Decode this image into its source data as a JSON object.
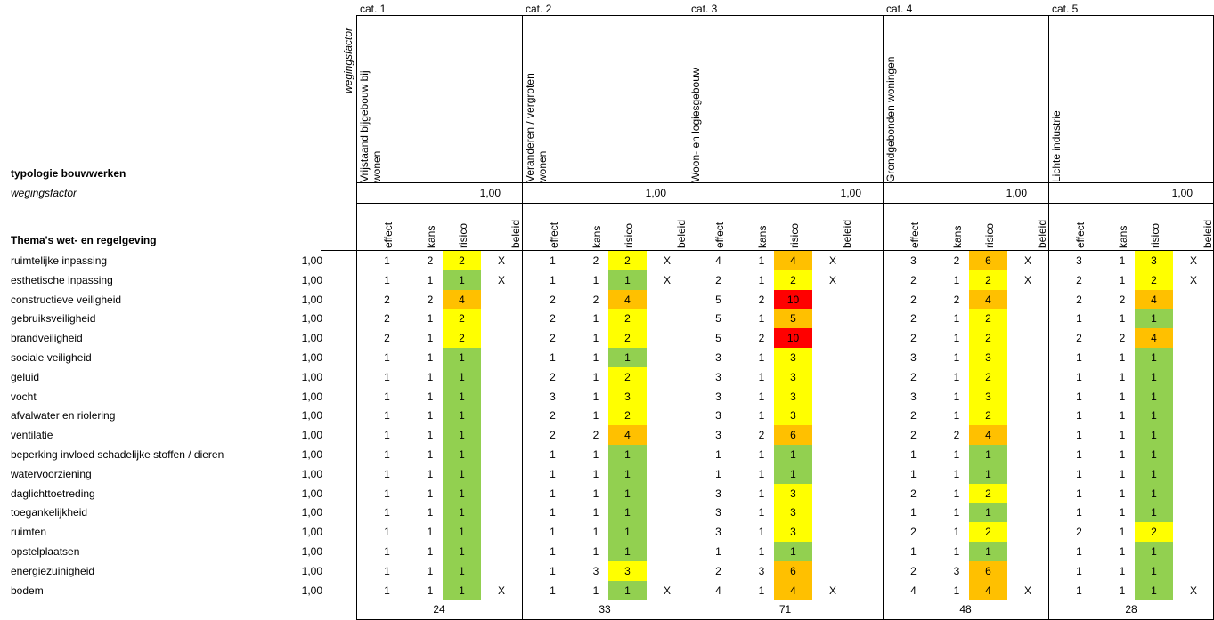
{
  "title": "typologie bouwwerken",
  "weight_label": "wegingsfactor",
  "weight_vertical_label": "wegingsfactor",
  "themes_title": "Thema's wet- en regelgeving",
  "col_headers": [
    "effect",
    "kans",
    "risico",
    "beleid"
  ],
  "colors": {
    "green": "#92d050",
    "yellow": "#ffff00",
    "orange": "#ffc000",
    "red": "#ff0000"
  },
  "rows": [
    {
      "label": "ruimtelijke inpassing",
      "weight": "1,00"
    },
    {
      "label": "esthetische inpassing",
      "weight": "1,00"
    },
    {
      "label": "constructieve veiligheid",
      "weight": "1,00"
    },
    {
      "label": "gebruiksveiligheid",
      "weight": "1,00"
    },
    {
      "label": "brandveiligheid",
      "weight": "1,00"
    },
    {
      "label": "sociale veiligheid",
      "weight": "1,00"
    },
    {
      "label": "geluid",
      "weight": "1,00"
    },
    {
      "label": "vocht",
      "weight": "1,00"
    },
    {
      "label": "afvalwater en riolering",
      "weight": "1,00"
    },
    {
      "label": "ventilatie",
      "weight": "1,00"
    },
    {
      "label": "beperking invloed schadelijke stoffen / dieren",
      "weight": "1,00"
    },
    {
      "label": "watervoorziening",
      "weight": "1,00"
    },
    {
      "label": "daglichttoetreding",
      "weight": "1,00"
    },
    {
      "label": "toegankelijkheid",
      "weight": "1,00"
    },
    {
      "label": "ruimten",
      "weight": "1,00"
    },
    {
      "label": "opstelplaatsen",
      "weight": "1,00"
    },
    {
      "label": "energiezuinigheid",
      "weight": "1,00"
    },
    {
      "label": "bodem",
      "weight": "1,00"
    }
  ],
  "categories": [
    {
      "cat": "cat. 1",
      "name": [
        "Vrijstaand bijgebouw bij",
        "wonen"
      ],
      "weight": "1,00",
      "total": "24",
      "cells": [
        [
          "1",
          "2",
          "2",
          "X"
        ],
        [
          "1",
          "1",
          "1",
          "X"
        ],
        [
          "2",
          "2",
          "4",
          ""
        ],
        [
          "2",
          "1",
          "2",
          ""
        ],
        [
          "2",
          "1",
          "2",
          ""
        ],
        [
          "1",
          "1",
          "1",
          ""
        ],
        [
          "1",
          "1",
          "1",
          ""
        ],
        [
          "1",
          "1",
          "1",
          ""
        ],
        [
          "1",
          "1",
          "1",
          ""
        ],
        [
          "1",
          "1",
          "1",
          ""
        ],
        [
          "1",
          "1",
          "1",
          ""
        ],
        [
          "1",
          "1",
          "1",
          ""
        ],
        [
          "1",
          "1",
          "1",
          ""
        ],
        [
          "1",
          "1",
          "1",
          ""
        ],
        [
          "1",
          "1",
          "1",
          ""
        ],
        [
          "1",
          "1",
          "1",
          ""
        ],
        [
          "1",
          "1",
          "1",
          ""
        ],
        [
          "1",
          "1",
          "1",
          "X"
        ]
      ]
    },
    {
      "cat": "cat. 2",
      "name": [
        "Veranderen / vergroten",
        "wonen"
      ],
      "weight": "1,00",
      "total": "33",
      "cells": [
        [
          "1",
          "2",
          "2",
          "X"
        ],
        [
          "1",
          "1",
          "1",
          "X"
        ],
        [
          "2",
          "2",
          "4",
          ""
        ],
        [
          "2",
          "1",
          "2",
          ""
        ],
        [
          "2",
          "1",
          "2",
          ""
        ],
        [
          "1",
          "1",
          "1",
          ""
        ],
        [
          "2",
          "1",
          "2",
          ""
        ],
        [
          "3",
          "1",
          "3",
          ""
        ],
        [
          "2",
          "1",
          "2",
          ""
        ],
        [
          "2",
          "2",
          "4",
          ""
        ],
        [
          "1",
          "1",
          "1",
          ""
        ],
        [
          "1",
          "1",
          "1",
          ""
        ],
        [
          "1",
          "1",
          "1",
          ""
        ],
        [
          "1",
          "1",
          "1",
          ""
        ],
        [
          "1",
          "1",
          "1",
          ""
        ],
        [
          "1",
          "1",
          "1",
          ""
        ],
        [
          "1",
          "3",
          "3",
          ""
        ],
        [
          "1",
          "1",
          "1",
          "X"
        ]
      ]
    },
    {
      "cat": "cat. 3",
      "name": [
        "Woon- en logiesgebouw"
      ],
      "weight": "1,00",
      "total": "71",
      "cells": [
        [
          "4",
          "1",
          "4",
          "X"
        ],
        [
          "2",
          "1",
          "2",
          "X"
        ],
        [
          "5",
          "2",
          "10",
          ""
        ],
        [
          "5",
          "1",
          "5",
          ""
        ],
        [
          "5",
          "2",
          "10",
          ""
        ],
        [
          "3",
          "1",
          "3",
          ""
        ],
        [
          "3",
          "1",
          "3",
          ""
        ],
        [
          "3",
          "1",
          "3",
          ""
        ],
        [
          "3",
          "1",
          "3",
          ""
        ],
        [
          "3",
          "2",
          "6",
          ""
        ],
        [
          "1",
          "1",
          "1",
          ""
        ],
        [
          "1",
          "1",
          "1",
          ""
        ],
        [
          "3",
          "1",
          "3",
          ""
        ],
        [
          "3",
          "1",
          "3",
          ""
        ],
        [
          "3",
          "1",
          "3",
          ""
        ],
        [
          "1",
          "1",
          "1",
          ""
        ],
        [
          "2",
          "3",
          "6",
          ""
        ],
        [
          "4",
          "1",
          "4",
          "X"
        ]
      ]
    },
    {
      "cat": "cat. 4",
      "name": [
        "Grondgebonden woningen"
      ],
      "weight": "1,00",
      "total": "48",
      "cells": [
        [
          "3",
          "2",
          "6",
          "X"
        ],
        [
          "2",
          "1",
          "2",
          "X"
        ],
        [
          "2",
          "2",
          "4",
          ""
        ],
        [
          "2",
          "1",
          "2",
          ""
        ],
        [
          "2",
          "1",
          "2",
          ""
        ],
        [
          "3",
          "1",
          "3",
          ""
        ],
        [
          "2",
          "1",
          "2",
          ""
        ],
        [
          "3",
          "1",
          "3",
          ""
        ],
        [
          "2",
          "1",
          "2",
          ""
        ],
        [
          "2",
          "2",
          "4",
          ""
        ],
        [
          "1",
          "1",
          "1",
          ""
        ],
        [
          "1",
          "1",
          "1",
          ""
        ],
        [
          "2",
          "1",
          "2",
          ""
        ],
        [
          "1",
          "1",
          "1",
          ""
        ],
        [
          "2",
          "1",
          "2",
          ""
        ],
        [
          "1",
          "1",
          "1",
          ""
        ],
        [
          "2",
          "3",
          "6",
          ""
        ],
        [
          "4",
          "1",
          "4",
          "X"
        ]
      ]
    },
    {
      "cat": "cat. 5",
      "name": [
        "Lichte industrie"
      ],
      "weight": "1,00",
      "total": "28",
      "cells": [
        [
          "3",
          "1",
          "3",
          "X"
        ],
        [
          "2",
          "1",
          "2",
          "X"
        ],
        [
          "2",
          "2",
          "4",
          ""
        ],
        [
          "1",
          "1",
          "1",
          ""
        ],
        [
          "2",
          "2",
          "4",
          ""
        ],
        [
          "1",
          "1",
          "1",
          ""
        ],
        [
          "1",
          "1",
          "1",
          ""
        ],
        [
          "1",
          "1",
          "1",
          ""
        ],
        [
          "1",
          "1",
          "1",
          ""
        ],
        [
          "1",
          "1",
          "1",
          ""
        ],
        [
          "1",
          "1",
          "1",
          ""
        ],
        [
          "1",
          "1",
          "1",
          ""
        ],
        [
          "1",
          "1",
          "1",
          ""
        ],
        [
          "1",
          "1",
          "1",
          ""
        ],
        [
          "2",
          "1",
          "2",
          ""
        ],
        [
          "1",
          "1",
          "1",
          ""
        ],
        [
          "1",
          "1",
          "1",
          ""
        ],
        [
          "1",
          "1",
          "1",
          "X"
        ]
      ]
    }
  ]
}
